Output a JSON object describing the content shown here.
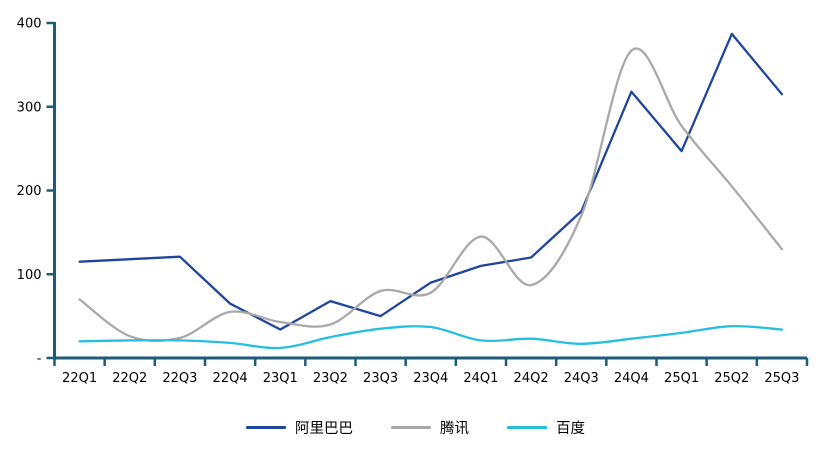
{
  "chart_data": {
    "type": "line",
    "title": "",
    "xlabel": "",
    "ylabel": "",
    "categories": [
      "22Q1",
      "22Q2",
      "22Q3",
      "22Q4",
      "23Q1",
      "23Q2",
      "23Q3",
      "23Q4",
      "24Q1",
      "24Q2",
      "24Q3",
      "24Q4",
      "25Q1",
      "25Q2",
      "25Q3"
    ],
    "series": [
      {
        "id": "alibaba",
        "name": "阿里巴巴",
        "color": "#20459C",
        "line_style": "straight",
        "values": [
          115,
          118,
          121,
          65,
          34,
          68,
          50,
          90,
          110,
          120,
          175,
          318,
          247,
          387,
          315
        ]
      },
      {
        "id": "tencent",
        "name": "腾讯",
        "color": "#A9A9A9",
        "line_style": "smooth",
        "values": [
          70,
          26,
          24,
          55,
          43,
          40,
          80,
          78,
          145,
          87,
          170,
          367,
          277,
          205,
          130
        ]
      },
      {
        "id": "baidu",
        "name": "百度",
        "color": "#27BFE0",
        "line_style": "smooth",
        "values": [
          20,
          21,
          21,
          18,
          12,
          25,
          35,
          37,
          21,
          23,
          17,
          23,
          30,
          38,
          34
        ]
      }
    ],
    "ylim": [
      0,
      400
    ],
    "yticks": [
      {
        "value": 0,
        "label": "-"
      },
      {
        "value": 100,
        "label": "100"
      },
      {
        "value": 200,
        "label": "200"
      },
      {
        "value": 300,
        "label": "300"
      },
      {
        "value": 400,
        "label": "400"
      }
    ],
    "grid": false,
    "legend_position": "bottom",
    "axis_color": "#1D5C77",
    "text_color": "#000000"
  }
}
